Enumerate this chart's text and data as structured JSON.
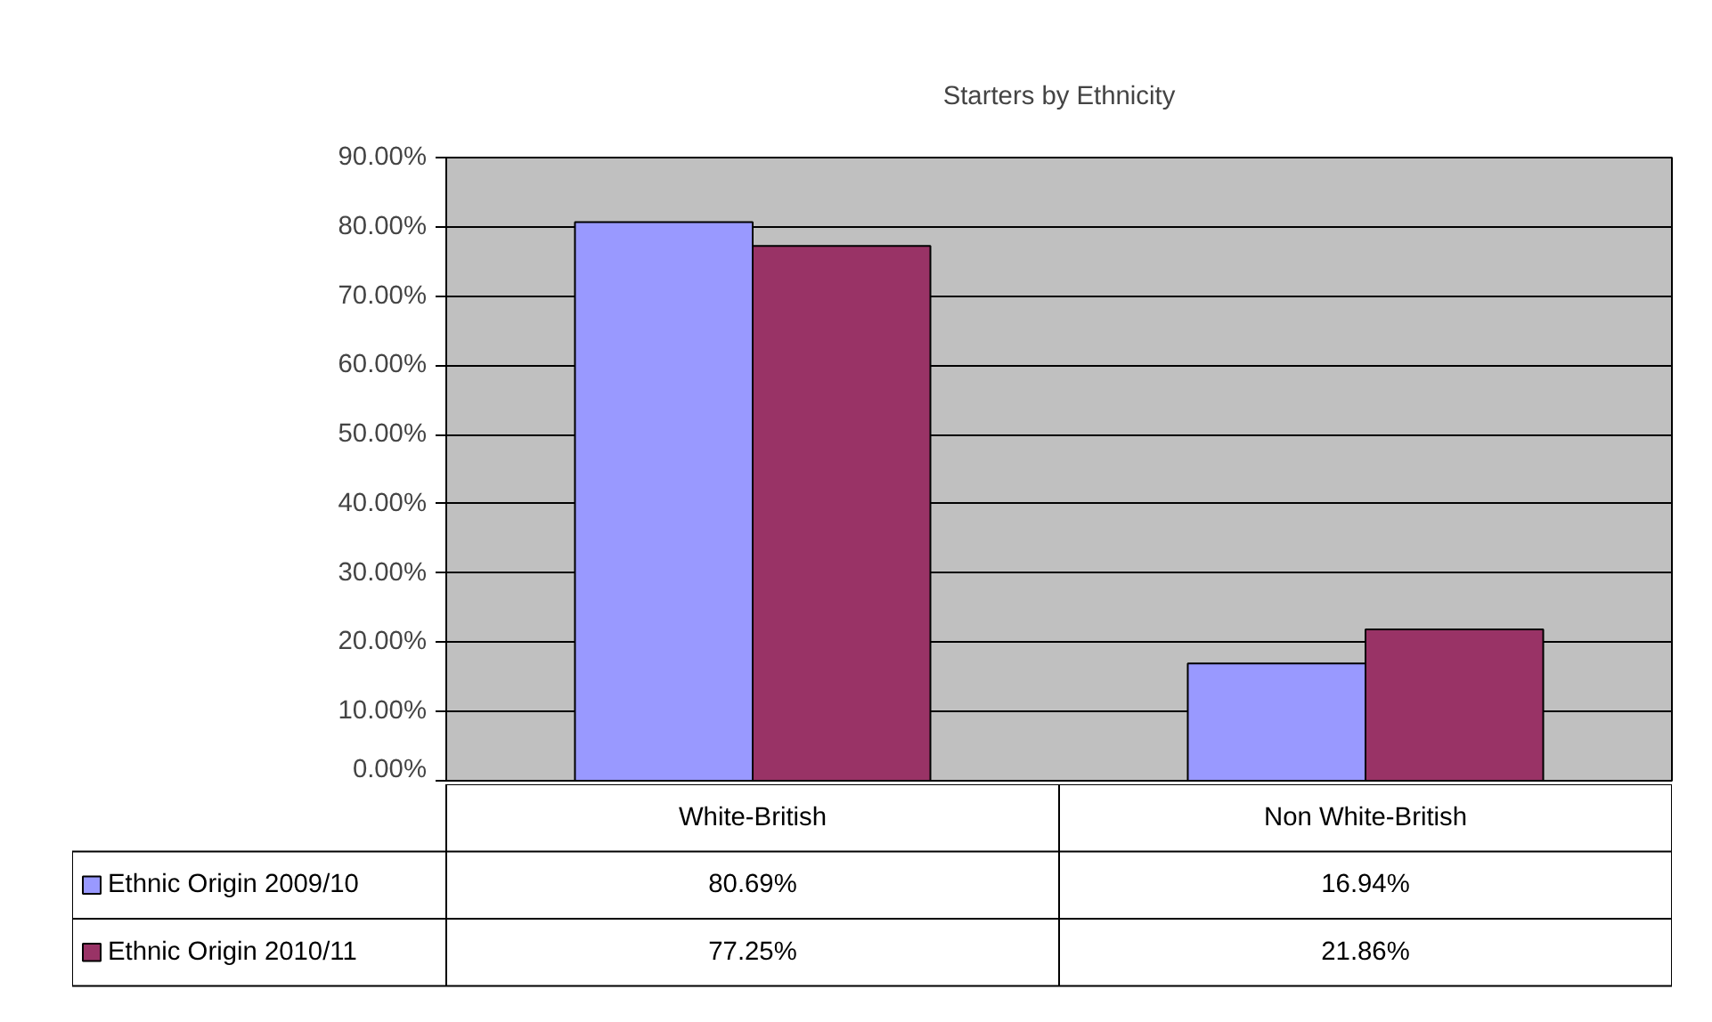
{
  "chart_data": {
    "type": "bar",
    "title": "Starters by Ethnicity",
    "categories": [
      "White-British",
      "Non White-British"
    ],
    "series": [
      {
        "name": "Ethnic Origin 2009/10",
        "color": "#9999ff",
        "values": [
          80.69,
          16.94
        ],
        "value_labels": [
          "80.69%",
          "16.94%"
        ]
      },
      {
        "name": "Ethnic Origin 2010/11",
        "color": "#993366",
        "values": [
          77.25,
          21.86
        ],
        "value_labels": [
          "77.25%",
          "21.86%"
        ]
      }
    ],
    "ylim": [
      0,
      90
    ],
    "yticks": [
      {
        "value": 0,
        "label": "0.00%"
      },
      {
        "value": 10,
        "label": "10.00%"
      },
      {
        "value": 20,
        "label": "20.00%"
      },
      {
        "value": 30,
        "label": "30.00%"
      },
      {
        "value": 40,
        "label": "40.00%"
      },
      {
        "value": 50,
        "label": "50.00%"
      },
      {
        "value": 60,
        "label": "60.00%"
      },
      {
        "value": 70,
        "label": "70.00%"
      },
      {
        "value": 80,
        "label": "80.00%"
      },
      {
        "value": 90,
        "label": "90.00%"
      }
    ],
    "grid": "y",
    "legend": "bottom"
  }
}
